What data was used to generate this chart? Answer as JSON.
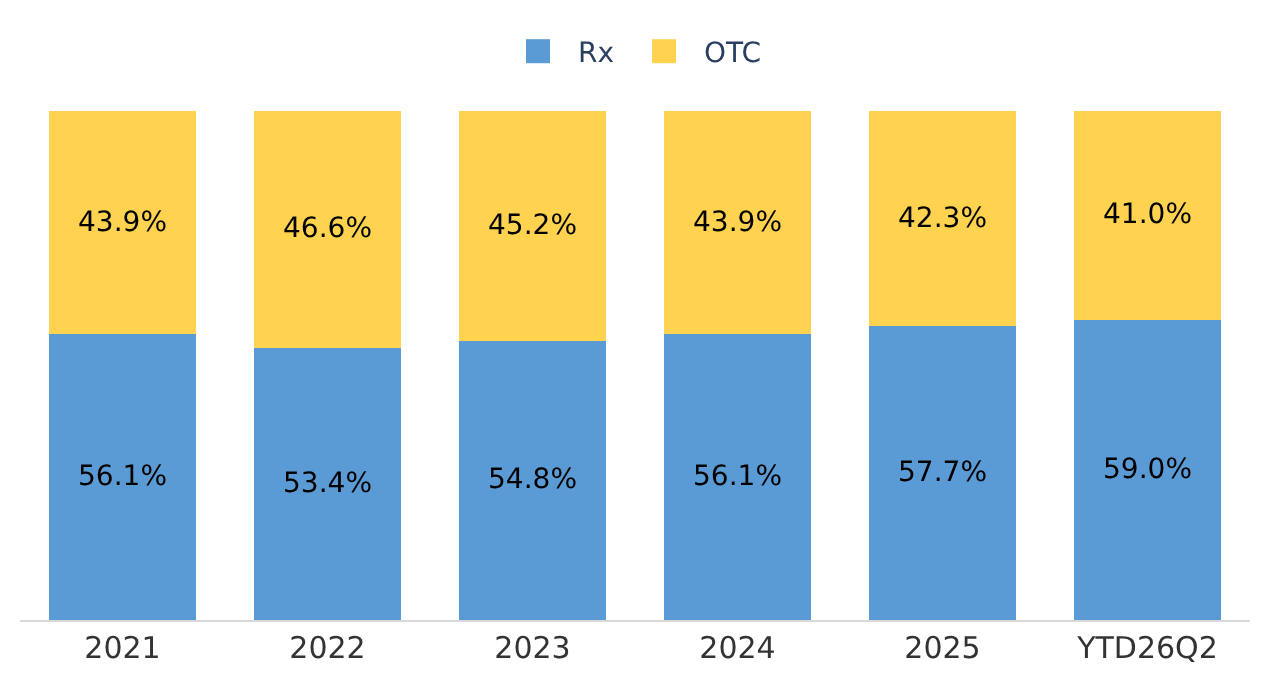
{
  "chart_data": {
    "type": "bar",
    "stacked": true,
    "legend": "top",
    "categories": [
      "2021",
      "2022",
      "2023",
      "2024",
      "2025",
      "YTD26Q2"
    ],
    "series": [
      {
        "name": "Rx",
        "color": "#5b9bd5",
        "values": [
          56.1,
          53.4,
          54.8,
          56.1,
          57.7,
          59.0
        ],
        "value_labels": [
          "56.1%",
          "53.4%",
          "54.8%",
          "56.1%",
          "57.7%",
          "59.0%"
        ]
      },
      {
        "name": "OTC",
        "color": "#ffd350",
        "values": [
          43.9,
          46.6,
          45.2,
          43.9,
          42.3,
          41.0
        ],
        "value_labels": [
          "43.9%",
          "46.6%",
          "45.2%",
          "43.9%",
          "42.3%",
          "41.0%"
        ]
      }
    ],
    "tick_labels": "x"
  }
}
